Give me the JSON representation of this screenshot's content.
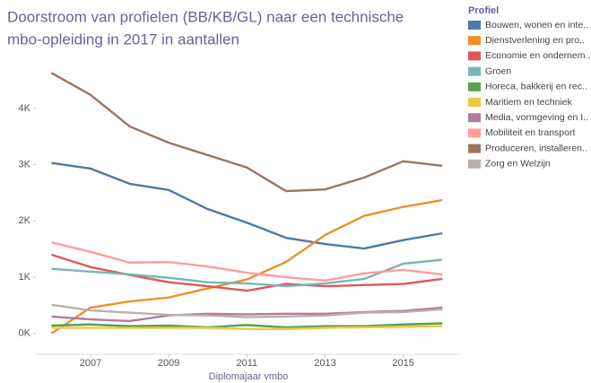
{
  "chart_data": {
    "type": "line",
    "title": "Doorstroom van profielen (BB/KB/GL) naar een technische mbo-opleiding in 2017 in aantallen",
    "title_lines": [
      "Doorstroom van profielen (BB/KB/GL) naar een technische",
      "mbo-opleiding in 2017 in aantallen"
    ],
    "x_label": "Diplomajaar vmbo",
    "legend_title": "Profiel",
    "x": [
      2006,
      2007,
      2008,
      2009,
      2010,
      2011,
      2012,
      2013,
      2014,
      2015,
      2016
    ],
    "xlim": [
      2005.6,
      2016.5
    ],
    "xticks": [
      2007,
      2009,
      2011,
      2013,
      2015
    ],
    "ylim": [
      -370,
      4970
    ],
    "yticks": [
      {
        "value": 0,
        "label": "0K"
      },
      {
        "value": 1000,
        "label": "1K"
      },
      {
        "value": 2000,
        "label": "2K"
      },
      {
        "value": 3000,
        "label": "3K"
      },
      {
        "value": 4000,
        "label": "4K"
      }
    ],
    "series": [
      {
        "name": "Bouwen, wonen en inte..",
        "color": "#4e79a7",
        "values": [
          3030,
          2930,
          2660,
          2550,
          2210,
          1970,
          1700,
          1590,
          1510,
          1660,
          1780
        ]
      },
      {
        "name": "Dienstverlening en pro..",
        "color": "#f28e2b",
        "values": [
          0,
          460,
          570,
          640,
          800,
          960,
          1270,
          1750,
          2090,
          2250,
          2370
        ]
      },
      {
        "name": "Economie en ondernem..",
        "color": "#e15759",
        "values": [
          1400,
          1180,
          1040,
          910,
          840,
          760,
          880,
          840,
          860,
          880,
          970
        ]
      },
      {
        "name": "Groen",
        "color": "#76b7b2",
        "values": [
          1150,
          1100,
          1050,
          990,
          910,
          890,
          840,
          890,
          970,
          1240,
          1310
        ]
      },
      {
        "name": "Horeca, bakkerij en rec..",
        "color": "#59a14f",
        "values": [
          140,
          160,
          130,
          140,
          110,
          150,
          110,
          130,
          130,
          160,
          180
        ]
      },
      {
        "name": "Maritiem en techniek",
        "color": "#edc948",
        "values": [
          100,
          100,
          100,
          100,
          100,
          80,
          80,
          100,
          110,
          120,
          130
        ]
      },
      {
        "name": "Media, vormgeving en I..",
        "color": "#b07aa1",
        "values": [
          300,
          250,
          220,
          320,
          350,
          340,
          350,
          350,
          380,
          400,
          460
        ]
      },
      {
        "name": "Mobiliteit en transport",
        "color": "#ff9d9a",
        "values": [
          1620,
          1450,
          1260,
          1270,
          1190,
          1080,
          1000,
          940,
          1070,
          1130,
          1050
        ]
      },
      {
        "name": "Produceren, installeren..",
        "color": "#9c755f",
        "values": [
          4630,
          4240,
          3680,
          3390,
          3170,
          2950,
          2530,
          2560,
          2770,
          3060,
          2980
        ]
      },
      {
        "name": "Zorg en Welzijn",
        "color": "#bab0ac",
        "values": [
          510,
          410,
          370,
          330,
          320,
          290,
          300,
          320,
          370,
          380,
          430
        ]
      }
    ]
  }
}
